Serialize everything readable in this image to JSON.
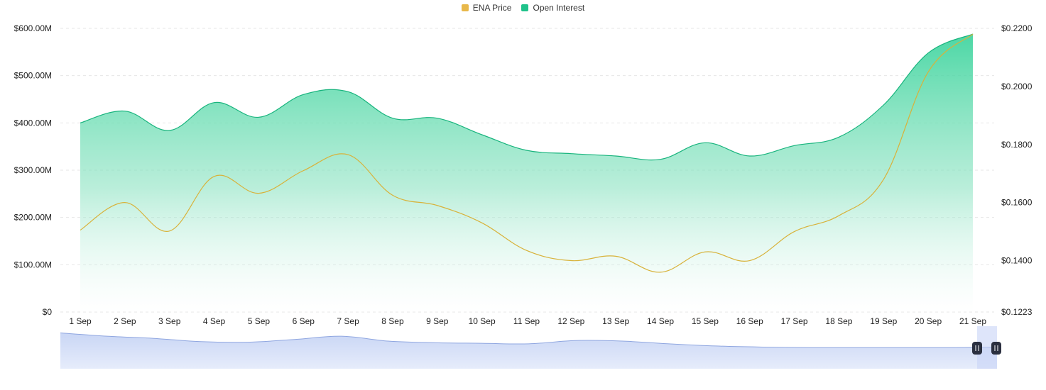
{
  "chart_data": {
    "type": "area",
    "title": "",
    "legend": [
      {
        "label": "ENA Price",
        "color": "#e8b84a"
      },
      {
        "label": "Open Interest",
        "color": "#1fc28a"
      }
    ],
    "legend_position": "top-center",
    "categories": [
      "1 Sep",
      "2 Sep",
      "3 Sep",
      "4 Sep",
      "5 Sep",
      "6 Sep",
      "7 Sep",
      "8 Sep",
      "9 Sep",
      "10 Sep",
      "11 Sep",
      "12 Sep",
      "13 Sep",
      "14 Sep",
      "15 Sep",
      "16 Sep",
      "17 Sep",
      "18 Sep",
      "19 Sep",
      "20 Sep",
      "21 Sep"
    ],
    "left_axis": {
      "ticks": [
        "$0",
        "$100.00M",
        "$200.00M",
        "$300.00M",
        "$400.00M",
        "$500.00M",
        "$600.00M"
      ],
      "range": [
        0,
        600
      ]
    },
    "right_axis": {
      "ticks": [
        "$0.1223",
        "$0.1400",
        "$0.1600",
        "$0.1800",
        "$0.2000",
        "$0.2200"
      ],
      "range": [
        0.1223,
        0.22
      ]
    },
    "series": [
      {
        "name": "Open Interest",
        "axis": "left",
        "unit": "M USD",
        "color": "#1fc28a",
        "values": [
          400,
          425,
          384,
          443,
          412,
          460,
          466,
          410,
          410,
          375,
          342,
          335,
          330,
          323,
          358,
          330,
          352,
          370,
          438,
          548,
          588
        ]
      },
      {
        "name": "ENA Price",
        "axis": "right",
        "unit": "USD",
        "color": "#e8b84a",
        "values": [
          0.1505,
          0.16,
          0.1502,
          0.169,
          0.1632,
          0.171,
          0.1765,
          0.1625,
          0.159,
          0.153,
          0.1435,
          0.14,
          0.1415,
          0.136,
          0.143,
          0.14,
          0.15,
          0.1555,
          0.168,
          0.205,
          0.218
        ]
      }
    ],
    "grid": true
  },
  "controls": {
    "handle_left_icon": "pause-bars-icon",
    "handle_right_icon": "pause-bars-icon"
  }
}
